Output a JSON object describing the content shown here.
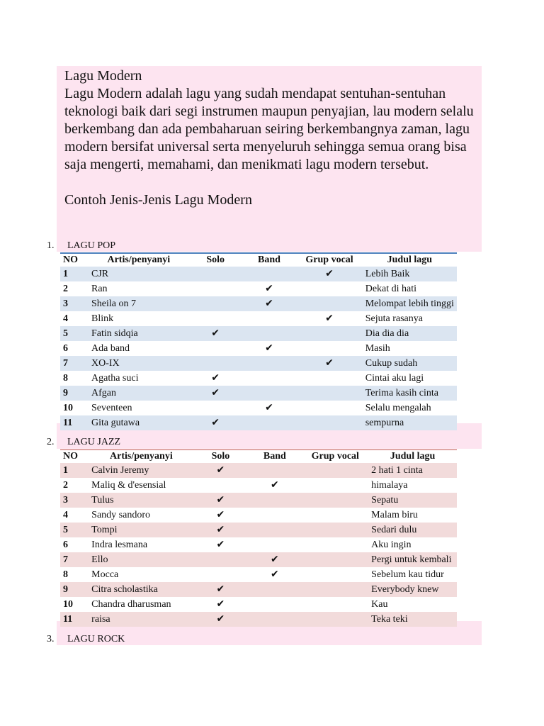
{
  "intro": {
    "title": "Lagu Modern",
    "body": "Lagu Modern adalah lagu yang sudah mendapat sentuhan-sentuhan teknologi baik dari segi instrumen maupun penyajian, lau modern selalu berkembang dan ada pembaharuan seiring berkembangnya zaman, lagu modern bersifat universal serta menyeluruh sehingga semua orang bisa saja mengerti, memahami, dan menikmati lagu modern tersebut.",
    "subtitle": "Contoh Jenis-Jenis Lagu Modern"
  },
  "headers": [
    "NO",
    "Artis/penyanyi",
    "Solo",
    "Band",
    "Grup vocal",
    "Judul lagu"
  ],
  "check_glyph": "✔",
  "sections": [
    {
      "num": "1.",
      "title": "LAGU POP",
      "accent": "#4f81bd",
      "rows": [
        {
          "no": "1",
          "artist": "CJR",
          "type": "grup",
          "song": "Lebih Baik"
        },
        {
          "no": "2",
          "artist": "Ran",
          "type": "band",
          "song": "Dekat di hati"
        },
        {
          "no": "3",
          "artist": "Sheila on 7",
          "type": "band",
          "song": "Melompat lebih tinggi"
        },
        {
          "no": "4",
          "artist": "Blink",
          "type": "grup",
          "song": "Sejuta rasanya"
        },
        {
          "no": "5",
          "artist": "Fatin sidqia",
          "type": "solo",
          "song": "Dia dia dia"
        },
        {
          "no": "6",
          "artist": "Ada band",
          "type": "band",
          "song": "Masih"
        },
        {
          "no": "7",
          "artist": "XO-IX",
          "type": "grup",
          "song": "Cukup sudah"
        },
        {
          "no": "8",
          "artist": "Agatha suci",
          "type": "solo",
          "song": "Cintai aku lagi"
        },
        {
          "no": "9",
          "artist": "Afgan",
          "type": "solo",
          "song": "Terima kasih cinta"
        },
        {
          "no": "10",
          "artist": "Seventeen",
          "type": "band",
          "song": "Selalu mengalah"
        },
        {
          "no": "11",
          "artist": "Gita gutawa",
          "type": "solo",
          "song": "sempurna"
        }
      ]
    },
    {
      "num": "2.",
      "title": "LAGU JAZZ",
      "accent": "#c0504d",
      "rows": [
        {
          "no": "1",
          "artist": "Calvin Jeremy",
          "type": "solo",
          "song": "2 hati 1 cinta"
        },
        {
          "no": "2",
          "artist": "Maliq & d'esensial",
          "type": "band",
          "song": "himalaya"
        },
        {
          "no": "3",
          "artist": "Tulus",
          "type": "solo",
          "song": "Sepatu"
        },
        {
          "no": "4",
          "artist": "Sandy sandoro",
          "type": "solo",
          "song": "Malam biru"
        },
        {
          "no": "5",
          "artist": "Tompi",
          "type": "solo",
          "song": "Sedari dulu"
        },
        {
          "no": "6",
          "artist": "Indra lesmana",
          "type": "solo",
          "song": "Aku ingin"
        },
        {
          "no": "7",
          "artist": "Ello",
          "type": "band",
          "song": "Pergi untuk kembali"
        },
        {
          "no": "8",
          "artist": "Mocca",
          "type": "band",
          "song": "Sebelum kau tidur"
        },
        {
          "no": "9",
          "artist": "Citra scholastika",
          "type": "solo",
          "song": "Everybody knew"
        },
        {
          "no": "10",
          "artist": "Chandra dharusman",
          "type": "solo",
          "song": "Kau"
        },
        {
          "no": "11",
          "artist": "raisa",
          "type": "solo",
          "song": "Teka teki"
        }
      ]
    },
    {
      "num": "3.",
      "title": "LAGU ROCK",
      "rows": []
    }
  ]
}
